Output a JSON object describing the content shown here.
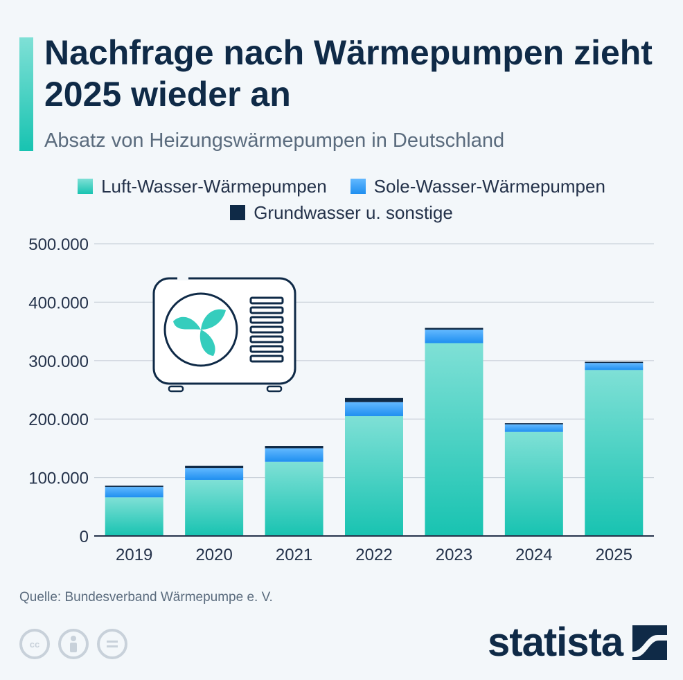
{
  "header": {
    "title": "Nachfrage nach Wärmepumpen zieht 2025 wieder an",
    "subtitle": "Absatz von Heizungswärmepumpen in Deutschland"
  },
  "legend": {
    "luft": "Luft-Wasser-Wärmepumpen",
    "sole": "Sole-Wasser-Wärmepumpen",
    "grund": "Grundwasser u. sonstige"
  },
  "footer": {
    "source": "Quelle: Bundesverband Wärmepumpe e. V.",
    "brand": "statista",
    "license_icons": [
      "cc-icon",
      "attribution-icon",
      "no-derivatives-icon"
    ]
  },
  "colors": {
    "luft_top": "#7fe0d6",
    "luft_bottom": "#18c3b1",
    "sole_top": "#62b8ff",
    "sole_bottom": "#1f8ff0",
    "grund": "#0f2a47",
    "grid": "#c9d1d9",
    "axis_text": "#24324a"
  },
  "chart_data": {
    "type": "bar",
    "stacked": true,
    "categories": [
      "2019",
      "2020",
      "2021",
      "2022",
      "2023",
      "2024",
      "2025"
    ],
    "series": [
      {
        "name": "Luft-Wasser-Wärmepumpen",
        "values": [
          66000,
          96000,
          127000,
          205000,
          330000,
          178000,
          284000
        ]
      },
      {
        "name": "Sole-Wasser-Wärmepumpen",
        "values": [
          18000,
          20000,
          23000,
          24000,
          23000,
          13000,
          12000
        ]
      },
      {
        "name": "Grundwasser u. sonstige",
        "values": [
          2000,
          4000,
          4000,
          7000,
          3000,
          2000,
          2000
        ]
      }
    ],
    "yticks": [
      "0",
      "100.000",
      "200.000",
      "300.000",
      "400.000",
      "500.000"
    ],
    "ytick_values": [
      0,
      100000,
      200000,
      300000,
      400000,
      500000
    ],
    "ylim": [
      0,
      500000
    ],
    "grid": true,
    "legend_position": "top",
    "illustration": "heat-pump-icon"
  }
}
